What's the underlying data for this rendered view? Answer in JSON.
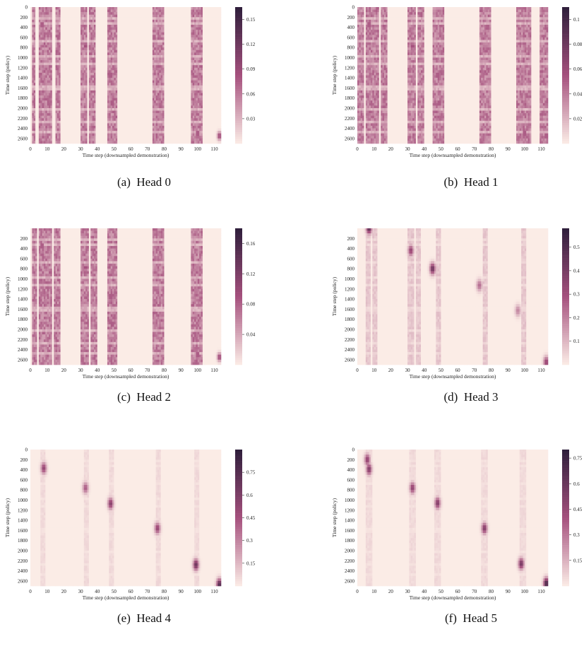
{
  "chart_data": [
    {
      "type": "heatmap",
      "caption": "(a)  Head 0",
      "xlabel": "Time step (downsampled demonstration)",
      "ylabel": "Time step (policy)",
      "xticks": [
        0,
        10,
        20,
        30,
        40,
        50,
        60,
        70,
        80,
        90,
        100,
        110
      ],
      "xlim": [
        0,
        114
      ],
      "yticks": [
        0,
        200,
        400,
        600,
        800,
        1000,
        1200,
        1400,
        1600,
        1800,
        2000,
        2200,
        2400,
        2600
      ],
      "ylim": [
        0,
        2700
      ],
      "colorbar_ticks": [
        0.03,
        0.06,
        0.09,
        0.12,
        0.15
      ],
      "colorbar_range": [
        0,
        0.165
      ],
      "pattern": "bands",
      "bands": [
        [
          1,
          3
        ],
        [
          5,
          13
        ],
        [
          15,
          18
        ],
        [
          30,
          34
        ],
        [
          35,
          39
        ],
        [
          46,
          52
        ],
        [
          73,
          80
        ],
        [
          96,
          103
        ]
      ]
    },
    {
      "type": "heatmap",
      "caption": "(b)  Head 1",
      "xlabel": "Time step (downsampled demonstration)",
      "ylabel": "Time step (policy)",
      "xticks": [
        0,
        10,
        20,
        30,
        40,
        50,
        60,
        70,
        80,
        90,
        100,
        110
      ],
      "xlim": [
        0,
        114
      ],
      "yticks": [
        0,
        200,
        400,
        600,
        800,
        1000,
        1200,
        1400,
        1600,
        1800,
        2000,
        2200,
        2400,
        2600
      ],
      "ylim": [
        0,
        2700
      ],
      "colorbar_ticks": [
        0.02,
        0.04,
        0.06,
        0.08,
        0.1
      ],
      "colorbar_range": [
        0,
        0.11
      ],
      "pattern": "bands",
      "bands": [
        [
          0,
          4
        ],
        [
          5,
          13
        ],
        [
          14,
          18
        ],
        [
          30,
          35
        ],
        [
          36,
          40
        ],
        [
          45,
          52
        ],
        [
          73,
          80
        ],
        [
          95,
          104
        ],
        [
          109,
          114
        ]
      ]
    },
    {
      "type": "heatmap",
      "caption": "(c)  Head 2",
      "xlabel": "Time step (downsampled demonstration)",
      "ylabel": "Time step (policy)",
      "xticks": [
        0,
        10,
        20,
        30,
        40,
        50,
        60,
        70,
        80,
        90,
        100,
        110
      ],
      "xlim": [
        0,
        114
      ],
      "yticks": [
        200,
        400,
        600,
        800,
        1000,
        1200,
        1400,
        1600,
        1800,
        2000,
        2200,
        2400,
        2600
      ],
      "ylim": [
        0,
        2700
      ],
      "colorbar_ticks": [
        0.04,
        0.08,
        0.12,
        0.16
      ],
      "colorbar_range": [
        0,
        0.18
      ],
      "pattern": "bands",
      "bands": [
        [
          1,
          4
        ],
        [
          5,
          13
        ],
        [
          14,
          18
        ],
        [
          30,
          35
        ],
        [
          36,
          40
        ],
        [
          46,
          52
        ],
        [
          73,
          80
        ],
        [
          96,
          103
        ]
      ]
    },
    {
      "type": "heatmap",
      "caption": "(d)  Head 3",
      "xlabel": "Time step (downsampled demonstration)",
      "ylabel": "Time step (policy)",
      "xticks": [
        0,
        10,
        20,
        30,
        40,
        50,
        60,
        70,
        80,
        90,
        100,
        110
      ],
      "xlim": [
        0,
        114
      ],
      "yticks": [
        200,
        400,
        600,
        800,
        1000,
        1200,
        1400,
        1600,
        1800,
        2000,
        2200,
        2400,
        2600
      ],
      "ylim": [
        0,
        2700
      ],
      "colorbar_ticks": [
        0.1,
        0.2,
        0.3,
        0.4,
        0.5
      ],
      "colorbar_range": [
        0,
        0.58
      ],
      "pattern": "sparse",
      "bands": [
        [
          5,
          8
        ],
        [
          9,
          12
        ],
        [
          30,
          34
        ],
        [
          35,
          38
        ],
        [
          47,
          50
        ],
        [
          75,
          78
        ],
        [
          98,
          101
        ]
      ],
      "peaks": [
        [
          7,
          0,
          0.5
        ],
        [
          32,
          440,
          0.35
        ],
        [
          45,
          800,
          0.45
        ],
        [
          73,
          1130,
          0.25
        ],
        [
          96,
          1630,
          0.2
        ],
        [
          113,
          2650,
          0.35
        ]
      ]
    },
    {
      "type": "heatmap",
      "caption": "(e)  Head 4",
      "xlabel": "Time step (downsampled demonstration)",
      "ylabel": "Time step (policy)",
      "xticks": [
        0,
        10,
        20,
        30,
        40,
        50,
        60,
        70,
        80,
        90,
        100,
        110
      ],
      "xlim": [
        0,
        114
      ],
      "yticks": [
        0,
        200,
        400,
        600,
        800,
        1000,
        1200,
        1400,
        1600,
        1800,
        2000,
        2200,
        2400,
        2600
      ],
      "ylim": [
        0,
        2700
      ],
      "colorbar_ticks": [
        0.15,
        0.3,
        0.45,
        0.6,
        0.75
      ],
      "colorbar_range": [
        0,
        0.9
      ],
      "pattern": "diagonal",
      "bands": [
        [
          6,
          9
        ],
        [
          32,
          35
        ],
        [
          47,
          50
        ],
        [
          75,
          78
        ],
        [
          98,
          101
        ]
      ],
      "peaks": [
        [
          8,
          370,
          0.55
        ],
        [
          33,
          760,
          0.45
        ],
        [
          48,
          1070,
          0.6
        ],
        [
          76,
          1560,
          0.55
        ],
        [
          99,
          2280,
          0.7
        ],
        [
          113,
          2670,
          0.8
        ]
      ]
    },
    {
      "type": "heatmap",
      "caption": "(f)  Head 5",
      "xlabel": "Time step (downsampled demonstration)",
      "ylabel": "Time step (policy)",
      "xticks": [
        0,
        10,
        20,
        30,
        40,
        50,
        60,
        70,
        80,
        90,
        100,
        110
      ],
      "xlim": [
        0,
        114
      ],
      "yticks": [
        0,
        200,
        400,
        600,
        800,
        1000,
        1200,
        1400,
        1600,
        1800,
        2000,
        2200,
        2400,
        2600
      ],
      "ylim": [
        0,
        2700
      ],
      "colorbar_ticks": [
        0.15,
        0.3,
        0.45,
        0.6,
        0.75
      ],
      "colorbar_range": [
        0,
        0.8
      ],
      "pattern": "diagonal",
      "bands": [
        [
          5,
          9
        ],
        [
          31,
          35
        ],
        [
          46,
          50
        ],
        [
          74,
          78
        ],
        [
          97,
          101
        ]
      ],
      "peaks": [
        [
          6,
          200,
          0.5
        ],
        [
          7,
          390,
          0.55
        ],
        [
          33,
          760,
          0.5
        ],
        [
          48,
          1060,
          0.55
        ],
        [
          76,
          1560,
          0.55
        ],
        [
          98,
          2260,
          0.6
        ],
        [
          113,
          2650,
          0.75
        ]
      ]
    }
  ],
  "colors": {
    "low": "#fbece6",
    "mid": "#a5507d",
    "high": "#2e1e3b"
  }
}
